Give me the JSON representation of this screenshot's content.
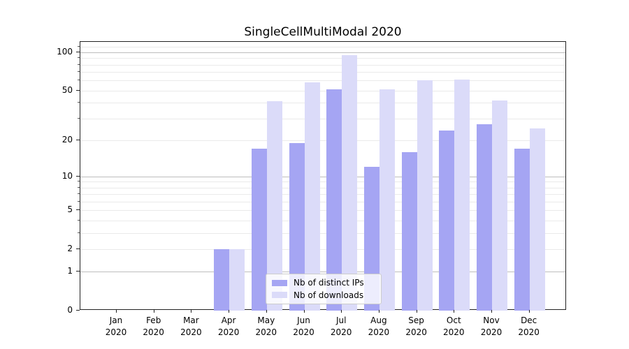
{
  "chart_data": {
    "type": "bar",
    "title": "SingleCellMultiModal 2020",
    "categories": [
      "Jan",
      "Feb",
      "Mar",
      "Apr",
      "May",
      "Jun",
      "Jul",
      "Aug",
      "Sep",
      "Oct",
      "Nov",
      "Dec"
    ],
    "year": "2020",
    "series": [
      {
        "name": "Nb of distinct IPs",
        "color": "#a5a5f3",
        "values": [
          0,
          0,
          0,
          2,
          17,
          19,
          51,
          12,
          16,
          24,
          27,
          17
        ]
      },
      {
        "name": "Nb of downloads",
        "color": "#dbdbf9",
        "values": [
          0,
          0,
          0,
          2,
          41,
          58,
          95,
          51,
          60,
          61,
          42,
          25
        ]
      }
    ],
    "xlabel": "",
    "ylabel": "",
    "y_scale": "log1p",
    "ylim": [
      0,
      120
    ],
    "y_tick_labels": [
      "0",
      "1",
      "2",
      "5",
      "10",
      "20",
      "50",
      "100"
    ],
    "y_ticks": [
      0,
      1,
      2,
      5,
      10,
      20,
      50,
      100
    ],
    "grid_major": [
      1,
      10,
      100
    ],
    "grid_minor": [
      2,
      3,
      4,
      5,
      6,
      7,
      8,
      9,
      20,
      30,
      40,
      50,
      60,
      70,
      80,
      90,
      110
    ],
    "grid": "on",
    "legend_position": "lower-center",
    "colors": {
      "grid_major": "#bdbdbd",
      "grid_minor": "#eaeaea",
      "spine": "#222222",
      "text": "#000000",
      "background": "#ffffff"
    }
  }
}
